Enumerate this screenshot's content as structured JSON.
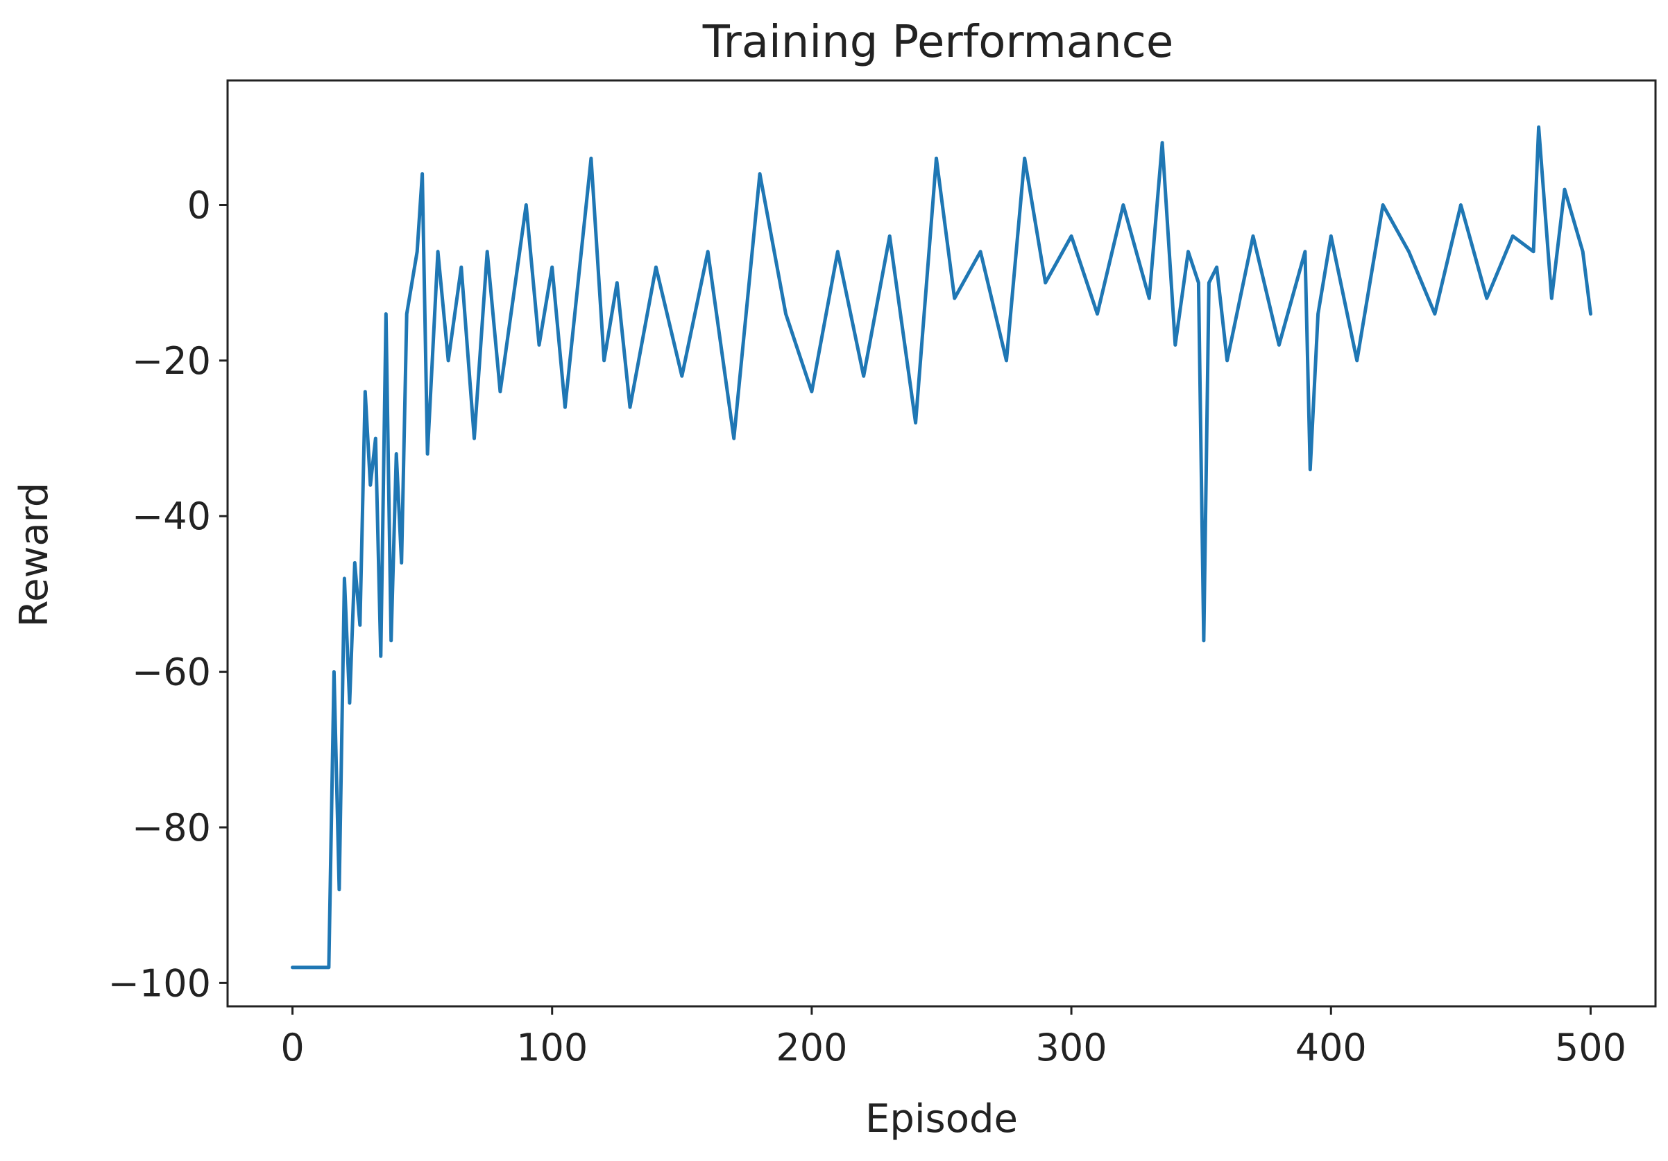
{
  "chart_data": {
    "type": "line",
    "title": "Training Performance",
    "xlabel": "Episode",
    "ylabel": "Reward",
    "xlim": [
      -25,
      525
    ],
    "ylim": [
      -103,
      16
    ],
    "xticks": [
      0,
      100,
      200,
      300,
      400,
      500
    ],
    "yticks": [
      0,
      -20,
      -40,
      -60,
      -80,
      -100
    ],
    "xtick_labels": [
      "0",
      "100",
      "200",
      "300",
      "400",
      "500"
    ],
    "ytick_labels": [
      "0",
      "−20",
      "−40",
      "−60",
      "−80",
      "−100"
    ],
    "grid": false,
    "series": [
      {
        "color": "#1f77b4",
        "x": [
          0,
          5,
          10,
          14,
          16,
          18,
          20,
          22,
          24,
          26,
          28,
          30,
          32,
          34,
          36,
          38,
          40,
          42,
          44,
          46,
          48,
          50,
          52,
          56,
          60,
          65,
          70,
          75,
          80,
          85,
          90,
          95,
          100,
          105,
          110,
          115,
          120,
          125,
          130,
          140,
          150,
          160,
          170,
          180,
          190,
          200,
          210,
          220,
          230,
          240,
          248,
          255,
          265,
          275,
          282,
          290,
          300,
          310,
          320,
          330,
          335,
          340,
          345,
          349,
          351,
          353,
          356,
          360,
          370,
          380,
          390,
          392,
          395,
          400,
          410,
          420,
          430,
          440,
          450,
          460,
          470,
          478,
          480,
          485,
          490,
          497,
          500
        ],
        "y": [
          -98,
          -98,
          -98,
          -98,
          -60,
          -88,
          -48,
          -64,
          -46,
          -54,
          -24,
          -36,
          -30,
          -58,
          -14,
          -56,
          -32,
          -46,
          -14,
          -10,
          -6,
          4,
          -32,
          -6,
          -20,
          -8,
          -30,
          -6,
          -24,
          -12,
          0,
          -18,
          -8,
          -26,
          -10,
          6,
          -20,
          -10,
          -26,
          -8,
          -22,
          -6,
          -30,
          4,
          -14,
          -24,
          -6,
          -22,
          -4,
          -28,
          6,
          -12,
          -6,
          -20,
          6,
          -10,
          -4,
          -14,
          0,
          -12,
          8,
          -18,
          -6,
          -10,
          -56,
          -10,
          -8,
          -20,
          -4,
          -18,
          -6,
          -34,
          -14,
          -4,
          -20,
          0,
          -6,
          -14,
          0,
          -12,
          -4,
          -6,
          10,
          -12,
          2,
          -6,
          -14
        ]
      }
    ]
  }
}
